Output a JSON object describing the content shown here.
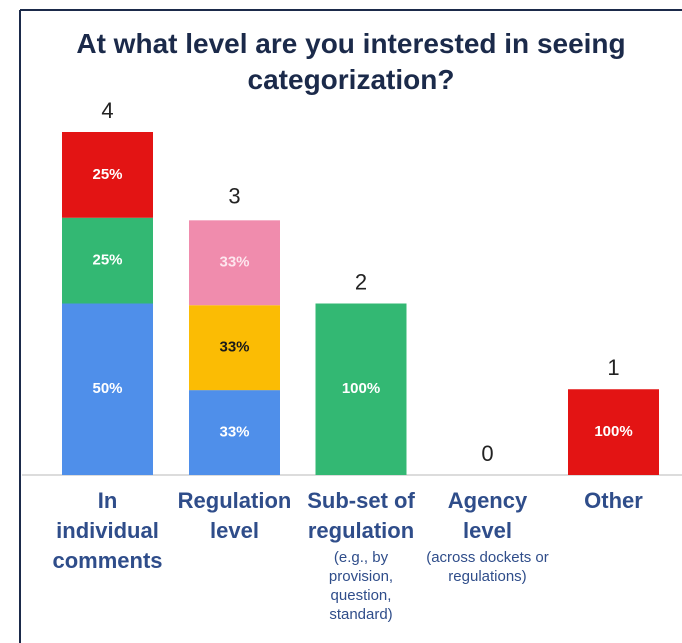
{
  "chart_data": {
    "type": "bar",
    "title": "At what level are you interested in seeing categorization?",
    "categories": [
      "In individual comments",
      "Regulation level",
      "Sub-set of regulation",
      "Agency level",
      "Other"
    ],
    "category_notes": [
      null,
      null,
      "(e.g., by provision, question, standard)",
      "(across dockets or regulations)",
      null
    ],
    "totals": [
      4,
      3,
      2,
      0,
      1
    ],
    "ylim": [
      0,
      4
    ],
    "series": [
      {
        "color": "#4f8fea",
        "label_color": "#ffffff",
        "values": [
          50,
          33,
          0,
          0,
          0
        ],
        "value_labels": [
          "50%",
          "33%",
          null,
          null,
          null
        ]
      },
      {
        "color": "#fbbc04",
        "label_color": "#1a1a1a",
        "values": [
          0,
          33,
          0,
          0,
          0
        ],
        "value_labels": [
          null,
          "33%",
          null,
          null,
          null
        ]
      },
      {
        "color": "#f08cad",
        "label_color": "#fde6ee",
        "values": [
          0,
          33,
          0,
          0,
          0
        ],
        "value_labels": [
          null,
          "33%",
          null,
          null,
          null
        ]
      },
      {
        "color": "#33b873",
        "label_color": "#ffffff",
        "values": [
          25,
          0,
          100,
          0,
          0
        ],
        "value_labels": [
          "25%",
          null,
          "100%",
          null,
          null
        ]
      },
      {
        "color": "#e31414",
        "label_color": "#ffffff",
        "values": [
          25,
          0,
          0,
          0,
          100
        ],
        "value_labels": [
          "25%",
          null,
          null,
          null,
          "100%"
        ]
      }
    ]
  }
}
